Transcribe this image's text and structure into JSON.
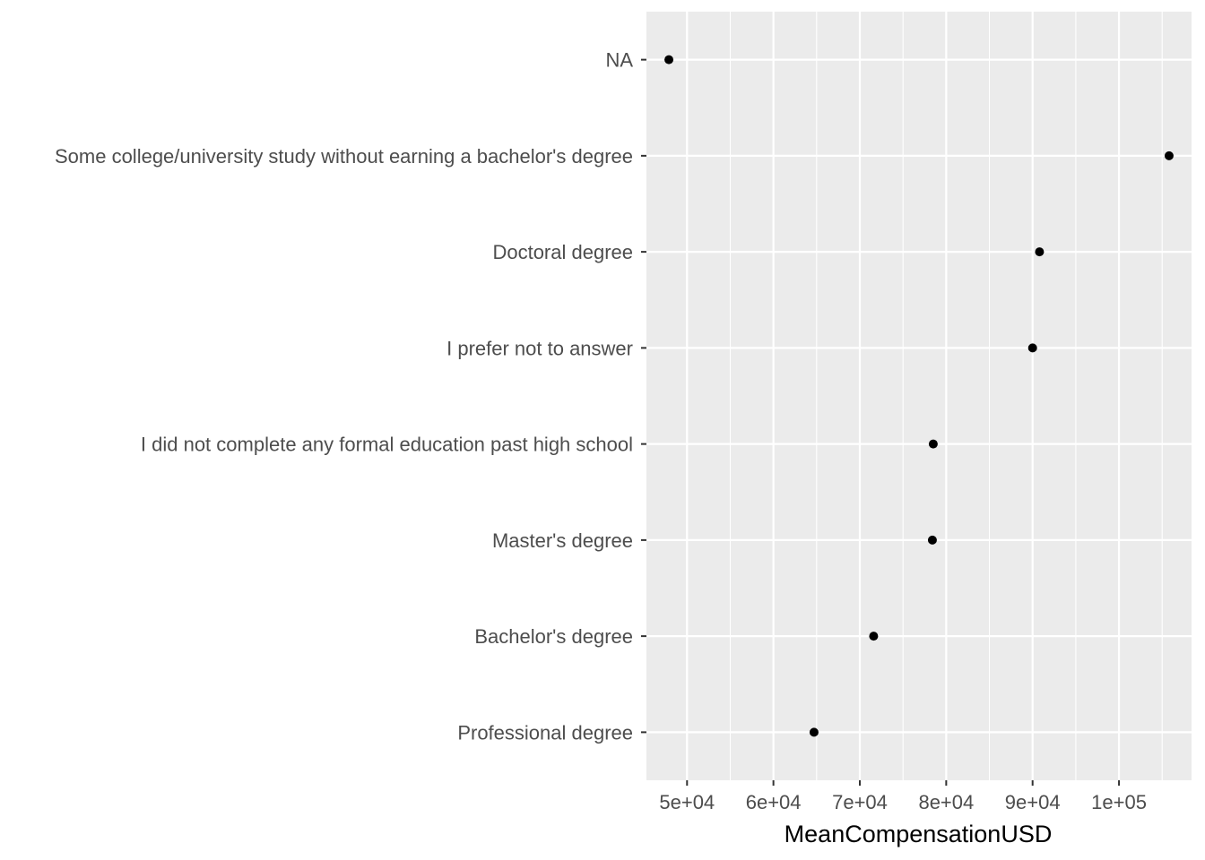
{
  "chart_data": {
    "type": "scatter",
    "title": "",
    "xlabel": "MeanCompensationUSD",
    "ylabel": "",
    "categories": [
      "Professional degree",
      "Bachelor's degree",
      "Master's degree",
      "I did not complete any formal education past high school",
      "I prefer not to answer",
      "Doctoral degree",
      "Some college/university study without earning a bachelor's degree",
      "NA"
    ],
    "values": [
      64700,
      71600,
      78400,
      78500,
      90000,
      90800,
      105800,
      47900
    ],
    "xlim": [
      45300,
      108400
    ],
    "x_ticks": [
      50000,
      60000,
      70000,
      80000,
      90000,
      100000
    ],
    "x_tick_labels": [
      "5e+04",
      "6e+04",
      "7e+04",
      "8e+04",
      "9e+04",
      "1e+05"
    ],
    "grid": true,
    "colors": {
      "panel": "#ebebeb",
      "grid_major": "#ffffff",
      "point": "#000000",
      "tick_text": "#4d4d4d",
      "tick_mark": "#333333"
    }
  }
}
